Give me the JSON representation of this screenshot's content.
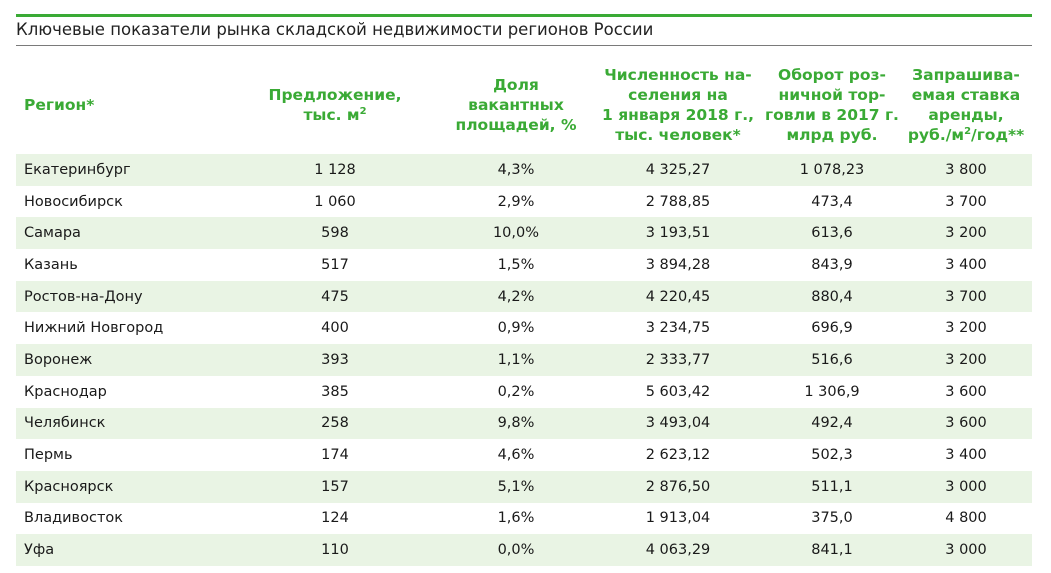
{
  "title": "Ключевые показатели рынка складской недвижимости регионов России",
  "header": {
    "region": "Регион*",
    "supply_line1": "Предложение,",
    "supply_line2": "тыс. м",
    "supply_sup": "2",
    "vacancy_line1": "Доля",
    "vacancy_line2": "вакантных",
    "vacancy_line3": "площадей, %",
    "population_line1": "Численность на-",
    "population_line2": "селения на",
    "population_line3": "1 января 2018 г.,",
    "population_line4": "тыс. человек*",
    "turnover_line1": "Оборот роз-",
    "turnover_line2": "ничной тор-",
    "turnover_line3": "говли в 2017 г.",
    "turnover_line4": "млрд руб.",
    "rent_line1": "Запрашива-",
    "rent_line2": "емая ставка",
    "rent_line3": "аренды,",
    "rent_line4_pre": "руб./м",
    "rent_sup": "2",
    "rent_line4_post": "/год**"
  },
  "rows": [
    {
      "region": "Екатеринбург",
      "supply": "1 128",
      "vacancy": "4,3%",
      "population": "4 325,27",
      "turnover": "1 078,23",
      "rent": "3 800"
    },
    {
      "region": "Новосибирск",
      "supply": "1 060",
      "vacancy": "2,9%",
      "population": "2 788,85",
      "turnover": "473,4",
      "rent": "3 700"
    },
    {
      "region": "Самара",
      "supply": "598",
      "vacancy": "10,0%",
      "population": "3 193,51",
      "turnover": "613,6",
      "rent": "3 200"
    },
    {
      "region": "Казань",
      "supply": "517",
      "vacancy": "1,5%",
      "population": "3 894,28",
      "turnover": "843,9",
      "rent": "3 400"
    },
    {
      "region": "Ростов-на-Дону",
      "supply": "475",
      "vacancy": "4,2%",
      "population": "4 220,45",
      "turnover": "880,4",
      "rent": "3 700"
    },
    {
      "region": "Нижний Новгород",
      "supply": "400",
      "vacancy": "0,9%",
      "population": "3 234,75",
      "turnover": "696,9",
      "rent": "3 200"
    },
    {
      "region": "Воронеж",
      "supply": "393",
      "vacancy": "1,1%",
      "population": "2 333,77",
      "turnover": "516,6",
      "rent": "3 200"
    },
    {
      "region": "Краснодар",
      "supply": "385",
      "vacancy": "0,2%",
      "population": "5 603,42",
      "turnover": "1 306,9",
      "rent": "3 600"
    },
    {
      "region": "Челябинск",
      "supply": "258",
      "vacancy": "9,8%",
      "population": "3 493,04",
      "turnover": "492,4",
      "rent": "3 600"
    },
    {
      "region": "Пермь",
      "supply": "174",
      "vacancy": "4,6%",
      "population": "2 623,12",
      "turnover": "502,3",
      "rent": "3 400"
    },
    {
      "region": "Красноярск",
      "supply": "157",
      "vacancy": "5,1%",
      "population": "2 876,50",
      "turnover": "511,1",
      "rent": "3 000"
    },
    {
      "region": "Владивосток",
      "supply": "124",
      "vacancy": "1,6%",
      "population": "1 913,04",
      "turnover": "375,0",
      "rent": "4 800"
    },
    {
      "region": "Уфа",
      "supply": "110",
      "vacancy": "0,0%",
      "population": "4 063,29",
      "turnover": "841,1",
      "rent": "3 000"
    }
  ],
  "colors": {
    "accent_green": "#3aaa35",
    "row_band": "#e9f4e4"
  }
}
